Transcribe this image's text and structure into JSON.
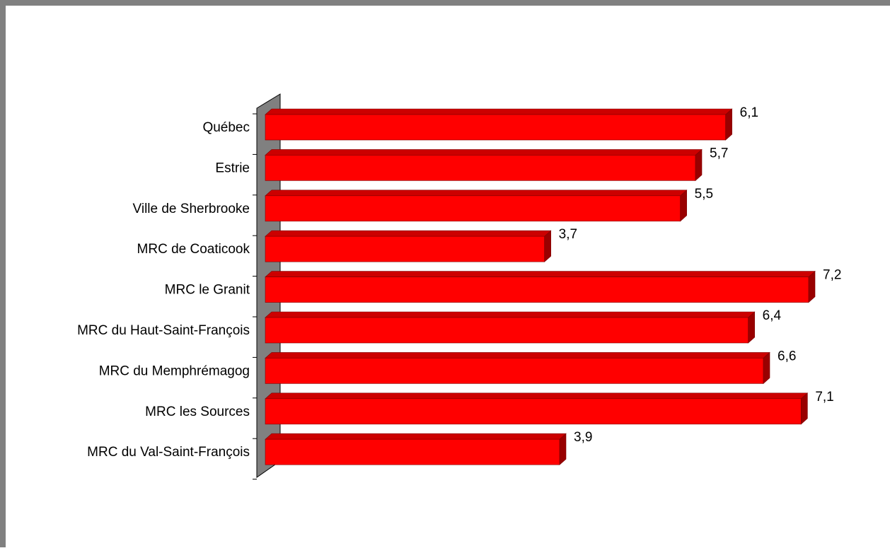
{
  "chart_data": {
    "type": "bar",
    "orientation": "horizontal",
    "style": "3d",
    "categories": [
      "Québec",
      "Estrie",
      "Ville de Sherbrooke",
      "MRC de Coaticook",
      "MRC le Granit",
      "MRC du Haut-Saint-François",
      "MRC du Memphrémagog",
      "MRC les Sources",
      "MRC du Val-Saint-François"
    ],
    "values": [
      6.1,
      5.7,
      5.5,
      3.7,
      7.2,
      6.4,
      6.6,
      7.1,
      3.9
    ],
    "value_labels": [
      "6,1",
      "5,7",
      "5,5",
      "3,7",
      "7,2",
      "6,4",
      "6,6",
      "7,1",
      "3,9"
    ],
    "title": "",
    "xlabel": "",
    "ylabel": "",
    "xlim": [
      0,
      7.2
    ],
    "grid": false,
    "legend": "none",
    "colors": {
      "bar_front": "#ff0000",
      "bar_top": "#cc0000",
      "bar_side": "#990000",
      "wall": "#808080",
      "frame": "#808080"
    }
  }
}
